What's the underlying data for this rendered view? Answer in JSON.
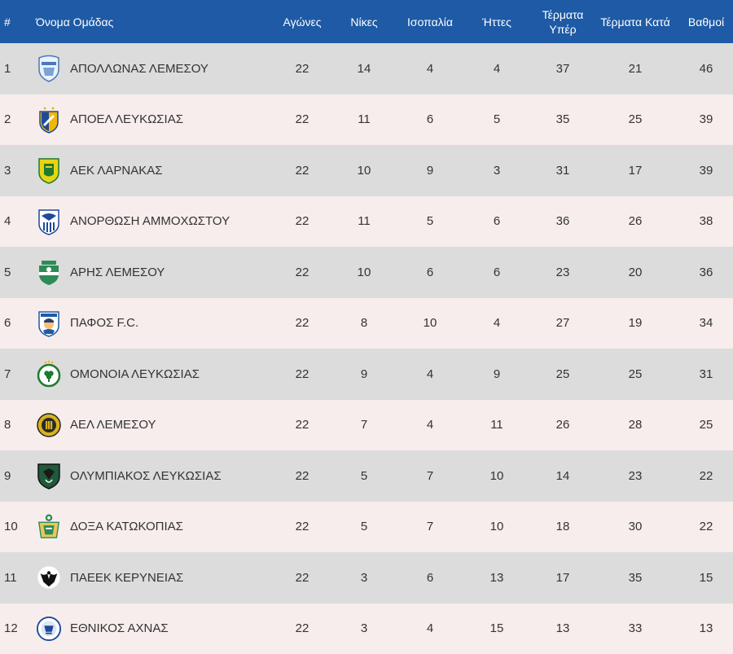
{
  "header": {
    "rank": "#",
    "team": "Όνομα Ομάδας",
    "played": "Αγώνες",
    "wins": "Νίκες",
    "draws": "Ισοπαλία",
    "losses": "Ήττες",
    "gf": "Τέρματα Υπέρ",
    "ga": "Τέρματα Κατά",
    "points": "Βαθμοί"
  },
  "colors": {
    "header_bg": "#1e5aa5",
    "row_odd": "#dcdcdc",
    "row_even": "#f7eded"
  },
  "rows": [
    {
      "rank": "1",
      "team": "ΑΠΟΛΛΩΝΑΣ ΛΕΜΕΣΟΥ",
      "logo": "apollon-crest-icon",
      "played": "22",
      "wins": "14",
      "draws": "4",
      "losses": "4",
      "gf": "37",
      "ga": "21",
      "points": "46"
    },
    {
      "rank": "2",
      "team": "ΑΠΟΕΛ ΛΕΥΚΩΣΙΑΣ",
      "logo": "apoel-crest-icon",
      "played": "22",
      "wins": "11",
      "draws": "6",
      "losses": "5",
      "gf": "35",
      "ga": "25",
      "points": "39"
    },
    {
      "rank": "3",
      "team": "ΑΕΚ ΛΑΡΝΑΚΑΣ",
      "logo": "aek-crest-icon",
      "played": "22",
      "wins": "10",
      "draws": "9",
      "losses": "3",
      "gf": "31",
      "ga": "17",
      "points": "39"
    },
    {
      "rank": "4",
      "team": "ΑΝΟΡΘΩΣΗ ΑΜΜΟΧΩΣΤΟΥ",
      "logo": "anorthosis-crest-icon",
      "played": "22",
      "wins": "11",
      "draws": "5",
      "losses": "6",
      "gf": "36",
      "ga": "26",
      "points": "38"
    },
    {
      "rank": "5",
      "team": "ΑΡΗΣ ΛΕΜΕΣΟΥ",
      "logo": "aris-crest-icon",
      "played": "22",
      "wins": "10",
      "draws": "6",
      "losses": "6",
      "gf": "23",
      "ga": "20",
      "points": "36"
    },
    {
      "rank": "6",
      "team": "ΠΑΦΟΣ F.C.",
      "logo": "pafos-crest-icon",
      "played": "22",
      "wins": "8",
      "draws": "10",
      "losses": "4",
      "gf": "27",
      "ga": "19",
      "points": "34"
    },
    {
      "rank": "7",
      "team": "ΟΜΟΝΟΙΑ ΛΕΥΚΩΣΙΑΣ",
      "logo": "omonoia-crest-icon",
      "played": "22",
      "wins": "9",
      "draws": "4",
      "losses": "9",
      "gf": "25",
      "ga": "25",
      "points": "31"
    },
    {
      "rank": "8",
      "team": "ΑΕΛ ΛΕΜΕΣΟΥ",
      "logo": "ael-crest-icon",
      "played": "22",
      "wins": "7",
      "draws": "4",
      "losses": "11",
      "gf": "26",
      "ga": "28",
      "points": "25"
    },
    {
      "rank": "9",
      "team": "ΟΛΥΜΠΙΑΚΟΣ ΛΕΥΚΩΣΙΑΣ",
      "logo": "olympiakos-crest-icon",
      "played": "22",
      "wins": "5",
      "draws": "7",
      "losses": "10",
      "gf": "14",
      "ga": "23",
      "points": "22"
    },
    {
      "rank": "10",
      "team": "ΔΟΞΑ ΚΑΤΩΚΟΠΙΑΣ",
      "logo": "doxa-crest-icon",
      "played": "22",
      "wins": "5",
      "draws": "7",
      "losses": "10",
      "gf": "18",
      "ga": "30",
      "points": "22"
    },
    {
      "rank": "11",
      "team": "ΠΑΕΕΚ ΚΕΡΥΝΕΙΑΣ",
      "logo": "paeek-crest-icon",
      "played": "22",
      "wins": "3",
      "draws": "6",
      "losses": "13",
      "gf": "17",
      "ga": "35",
      "points": "15"
    },
    {
      "rank": "12",
      "team": "ΕΘΝΙΚΟΣ ΑΧΝΑΣ",
      "logo": "ethnikos-crest-icon",
      "played": "22",
      "wins": "3",
      "draws": "4",
      "losses": "15",
      "gf": "13",
      "ga": "33",
      "points": "13"
    }
  ]
}
